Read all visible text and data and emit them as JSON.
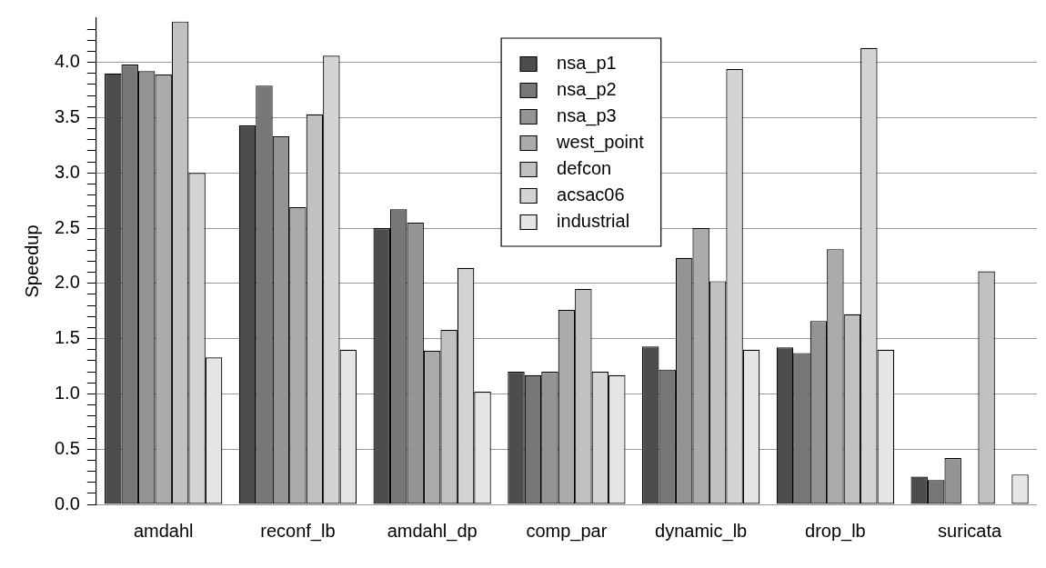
{
  "chart_data": {
    "type": "bar",
    "ylabel": "Speedup",
    "categories": [
      "amdahl",
      "reconf_lb",
      "amdahl_dp",
      "comp_par",
      "dynamic_lb",
      "drop_lb",
      "suricata"
    ],
    "series": [
      {
        "name": "nsa_p1",
        "color": "#4d4d4d",
        "values": [
          3.9,
          3.43,
          2.5,
          1.2,
          1.43,
          1.42,
          0.25
        ]
      },
      {
        "name": "nsa_p2",
        "color": "#777777",
        "values": [
          3.98,
          3.79,
          2.67,
          1.17,
          1.22,
          1.37,
          0.22
        ]
      },
      {
        "name": "nsa_p3",
        "color": "#949494",
        "values": [
          3.92,
          3.33,
          2.55,
          1.2,
          2.23,
          1.66,
          0.42
        ]
      },
      {
        "name": "west_point",
        "color": "#ababab",
        "values": [
          3.89,
          2.69,
          1.39,
          1.76,
          2.5,
          2.31,
          0
        ]
      },
      {
        "name": "defcon",
        "color": "#c1c1c1",
        "values": [
          4.37,
          3.53,
          1.58,
          1.95,
          2.02,
          1.72,
          2.11
        ]
      },
      {
        "name": "acsac06",
        "color": "#d4d4d4",
        "values": [
          3.0,
          4.06,
          2.14,
          1.2,
          3.94,
          4.13,
          0
        ]
      },
      {
        "name": "industrial",
        "color": "#e5e5e5",
        "values": [
          1.33,
          1.4,
          1.02,
          1.17,
          1.4,
          1.4,
          0.27
        ]
      }
    ],
    "ylim": [
      0,
      4.4
    ],
    "yticks": [
      {
        "value": 0,
        "label": "0.0"
      },
      {
        "value": 0.1,
        "label": null
      },
      {
        "value": 0.2,
        "label": null
      },
      {
        "value": 0.3,
        "label": null
      },
      {
        "value": 0.4,
        "label": null
      },
      {
        "value": 0.5,
        "label": "0.5"
      },
      {
        "value": 0.6,
        "label": null
      },
      {
        "value": 0.7,
        "label": null
      },
      {
        "value": 0.8,
        "label": null
      },
      {
        "value": 0.9,
        "label": null
      },
      {
        "value": 1,
        "label": "1.0"
      },
      {
        "value": 1.1,
        "label": null
      },
      {
        "value": 1.2,
        "label": null
      },
      {
        "value": 1.3,
        "label": null
      },
      {
        "value": 1.4,
        "label": null
      },
      {
        "value": 1.5,
        "label": "1.5"
      },
      {
        "value": 1.6,
        "label": null
      },
      {
        "value": 1.7,
        "label": null
      },
      {
        "value": 1.8,
        "label": null
      },
      {
        "value": 1.9,
        "label": null
      },
      {
        "value": 2,
        "label": "2.0"
      },
      {
        "value": 2.1,
        "label": null
      },
      {
        "value": 2.2,
        "label": null
      },
      {
        "value": 2.3,
        "label": null
      },
      {
        "value": 2.4,
        "label": null
      },
      {
        "value": 2.5,
        "label": "2.5"
      },
      {
        "value": 2.6,
        "label": null
      },
      {
        "value": 2.7,
        "label": null
      },
      {
        "value": 2.8,
        "label": null
      },
      {
        "value": 2.9,
        "label": null
      },
      {
        "value": 3,
        "label": "3.0"
      },
      {
        "value": 3.1,
        "label": null
      },
      {
        "value": 3.2,
        "label": null
      },
      {
        "value": 3.3,
        "label": null
      },
      {
        "value": 3.4,
        "label": null
      },
      {
        "value": 3.5,
        "label": "3.5"
      },
      {
        "value": 3.6,
        "label": null
      },
      {
        "value": 3.7,
        "label": null
      },
      {
        "value": 3.8,
        "label": null
      },
      {
        "value": 3.9,
        "label": null
      },
      {
        "value": 4,
        "label": "4.0"
      },
      {
        "value": 4.1,
        "label": null
      },
      {
        "value": 4.2,
        "label": null
      },
      {
        "value": 4.3,
        "label": null
      }
    ],
    "grid": "y",
    "legend": "top"
  }
}
